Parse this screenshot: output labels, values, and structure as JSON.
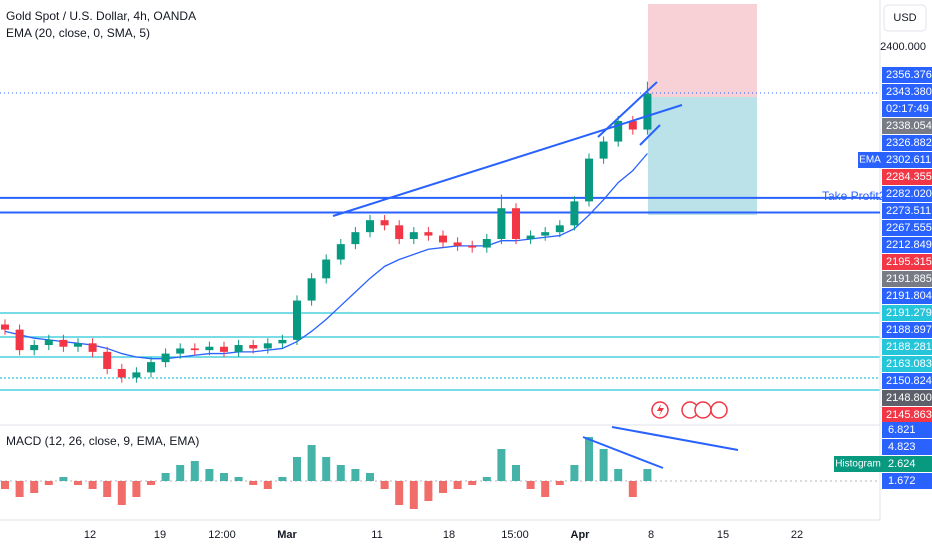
{
  "header": {
    "title": "Gold Spot / U.S. Dollar, 4h, OANDA",
    "indicator": "EMA (20, close, 0, SMA, 5)"
  },
  "currency": "USD",
  "price_axis": {
    "tick": "2400.000",
    "labels": [
      {
        "text": "2356.376",
        "color": "#2962ff"
      },
      {
        "text": "2343.380",
        "color": "#2962ff"
      },
      {
        "text": "2338.054",
        "color": "#787b86"
      },
      {
        "text": "2326.882",
        "color": "#2962ff"
      },
      {
        "text": "2302.611",
        "color": "#2962ff"
      },
      {
        "text": "2284.355",
        "color": "#f23645"
      },
      {
        "text": "2282.020",
        "color": "#2962ff"
      },
      {
        "text": "2273.511",
        "color": "#2962ff"
      },
      {
        "text": "2267.555",
        "color": "#2962ff"
      },
      {
        "text": "2212.849",
        "color": "#2962ff"
      },
      {
        "text": "2195.315",
        "color": "#f23645"
      },
      {
        "text": "2191.885",
        "color": "#787b86"
      },
      {
        "text": "2191.804",
        "color": "#2962ff"
      },
      {
        "text": "2191.279",
        "color": "#26c6da"
      },
      {
        "text": "2188.897",
        "color": "#2962ff"
      },
      {
        "text": "2188.281",
        "color": "#26c6da"
      },
      {
        "text": "2163.083",
        "color": "#26c6da"
      },
      {
        "text": "2150.824",
        "color": "#2962ff"
      },
      {
        "text": "2148.800",
        "color": "#5d606b"
      },
      {
        "text": "2145.863",
        "color": "#f23645"
      }
    ],
    "countdown": "02:17:49"
  },
  "levels": [
    2282.02,
    2273.511
  ],
  "annotations": {
    "take_profit": "Take Profit2",
    "ema_tag": "EMA",
    "histogram_tag": "Histogram"
  },
  "candles": {
    "open": [
      2208,
      2205,
      2193,
      2196,
      2199,
      2195,
      2197,
      2192,
      2182,
      2177,
      2180,
      2186,
      2191,
      2194,
      2193,
      2195,
      2192,
      2196,
      2194,
      2197,
      2199,
      2222,
      2235,
      2246,
      2255,
      2262,
      2269,
      2266,
      2258,
      2262,
      2260,
      2256,
      2254,
      2253,
      2258,
      2276,
      2258,
      2260,
      2262,
      2266,
      2280,
      2305,
      2315,
      2327,
      2322
    ],
    "high": [
      2211,
      2208,
      2199,
      2202,
      2202,
      2200,
      2200,
      2195,
      2185,
      2183,
      2189,
      2194,
      2197,
      2197,
      2198,
      2198,
      2199,
      2199,
      2200,
      2202,
      2225,
      2238,
      2249,
      2258,
      2265,
      2272,
      2272,
      2269,
      2265,
      2265,
      2263,
      2259,
      2257,
      2261,
      2284,
      2279,
      2263,
      2265,
      2269,
      2283,
      2308,
      2318,
      2330,
      2330,
      2350
    ],
    "low": [
      2202,
      2190,
      2190,
      2193,
      2192,
      2192,
      2189,
      2179,
      2174,
      2174,
      2177,
      2183,
      2188,
      2190,
      2190,
      2189,
      2189,
      2191,
      2191,
      2194,
      2196,
      2219,
      2232,
      2243,
      2252,
      2259,
      2263,
      2255,
      2255,
      2257,
      2253,
      2251,
      2250,
      2250,
      2255,
      2255,
      2255,
      2257,
      2259,
      2263,
      2277,
      2302,
      2312,
      2319,
      2319
    ],
    "close": [
      2205,
      2193,
      2196,
      2199,
      2195,
      2197,
      2192,
      2182,
      2177,
      2180,
      2186,
      2191,
      2194,
      2193,
      2195,
      2192,
      2196,
      2194,
      2197,
      2199,
      2222,
      2235,
      2246,
      2255,
      2262,
      2269,
      2266,
      2258,
      2262,
      2260,
      2256,
      2254,
      2253,
      2258,
      2276,
      2258,
      2260,
      2262,
      2266,
      2280,
      2305,
      2315,
      2327,
      2322,
      2343
    ]
  },
  "ema": [
    2204,
    2202,
    2200,
    2199,
    2198,
    2197,
    2196,
    2194,
    2191,
    2189,
    2188,
    2188,
    2189,
    2190,
    2191,
    2191,
    2192,
    2192,
    2193,
    2194,
    2198,
    2204,
    2211,
    2219,
    2227,
    2235,
    2242,
    2246,
    2249,
    2252,
    2253,
    2254,
    2254,
    2254,
    2257,
    2257,
    2258,
    2259,
    2260,
    2264,
    2272,
    2281,
    2291,
    2298,
    2308
  ],
  "macd": {
    "title": "MACD (12, 26, close, 9, EMA, EMA)",
    "labels": [
      {
        "text": "6.821",
        "color": "#2962ff"
      },
      {
        "text": "4.823",
        "color": "#2962ff"
      },
      {
        "text": "2.624",
        "color": "#089981"
      },
      {
        "text": "1.672",
        "color": "#2962ff"
      }
    ],
    "histogram": [
      -1,
      -2,
      -1.5,
      -0.5,
      0.5,
      -0.5,
      -1,
      -2,
      -3,
      -2,
      -0.5,
      1,
      2,
      2.5,
      1.5,
      1,
      0.5,
      -0.5,
      -1,
      0.5,
      3,
      4.5,
      3,
      2,
      1.5,
      1,
      -1,
      -3,
      -3.5,
      -2.5,
      -1.5,
      -1,
      -0.5,
      0.5,
      4,
      2,
      -1,
      -2,
      -0.5,
      2,
      5.5,
      4,
      1.5,
      -2,
      1.5
    ]
  },
  "time_axis": [
    {
      "label": "12",
      "bold": false
    },
    {
      "label": "19",
      "bold": false
    },
    {
      "label": "12:00",
      "bold": false
    },
    {
      "label": "Mar",
      "bold": true
    },
    {
      "label": "11",
      "bold": false
    },
    {
      "label": "18",
      "bold": false
    },
    {
      "label": "15:00",
      "bold": false
    },
    {
      "label": "Apr",
      "bold": true
    },
    {
      "label": "8",
      "bold": false
    },
    {
      "label": "15",
      "bold": false
    },
    {
      "label": "22",
      "bold": false
    }
  ]
}
